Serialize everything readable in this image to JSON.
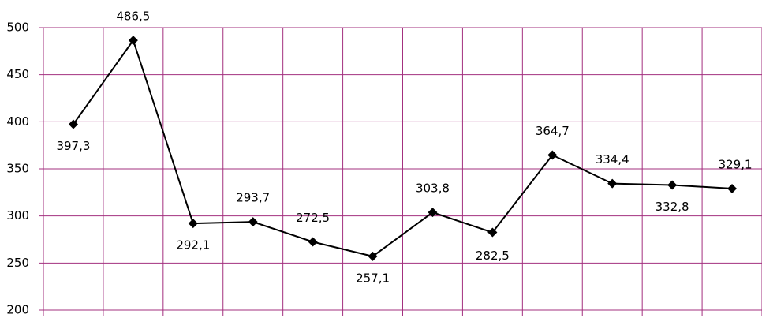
{
  "chart_data": {
    "type": "line",
    "categories": [
      null,
      null,
      null,
      null,
      null,
      null,
      null,
      null,
      null,
      null,
      null,
      null
    ],
    "series": [
      {
        "color": "#000000",
        "values": [
          397.3,
          486.5,
          292.1,
          293.7,
          272.5,
          257.1,
          303.8,
          282.5,
          364.7,
          334.4,
          332.8,
          329.1
        ],
        "value_labels": [
          "397,3",
          "486,5",
          "292,1",
          "293,7",
          "272,5",
          "257,1",
          "303,8",
          "282,5",
          "364,7",
          "334,4",
          "332,8",
          "329,1"
        ]
      }
    ],
    "ylim": [
      200,
      500
    ],
    "yticks": [
      200,
      250,
      300,
      350,
      400,
      450,
      500
    ],
    "grid": true,
    "grid_color": "#a3307f"
  }
}
